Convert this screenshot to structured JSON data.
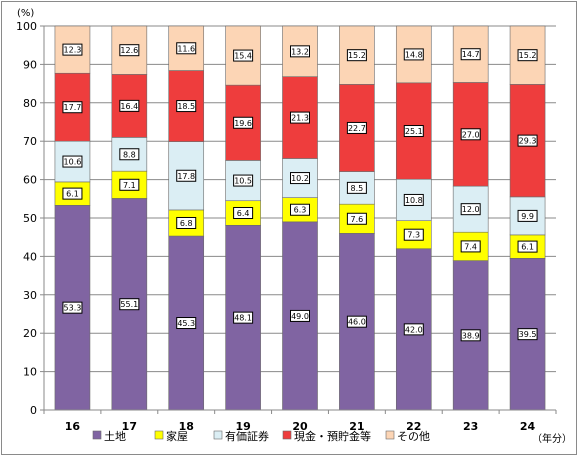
{
  "chart_data": {
    "type": "bar",
    "stacked": true,
    "y_unit_label": "(%)",
    "x_unit_label": "（年分）",
    "ylim": [
      0,
      100
    ],
    "yticks": [
      0,
      10,
      20,
      30,
      40,
      50,
      60,
      70,
      80,
      90,
      100
    ],
    "grid": true,
    "legend_position": "bottom",
    "categories": [
      "16",
      "17",
      "18",
      "19",
      "20",
      "21",
      "22",
      "23",
      "24"
    ],
    "series": [
      {
        "name": "土地",
        "color": "#8064a2",
        "values": [
          53.3,
          55.1,
          45.3,
          48.1,
          49.0,
          46.0,
          42.0,
          38.9,
          39.5
        ]
      },
      {
        "name": "家屋",
        "color": "#ffff00",
        "values": [
          6.1,
          7.1,
          6.8,
          6.4,
          6.3,
          7.6,
          7.3,
          7.4,
          6.1
        ]
      },
      {
        "name": "有価証券",
        "color": "#dbeef4",
        "values": [
          10.6,
          8.8,
          17.8,
          10.5,
          10.2,
          8.5,
          10.8,
          12.0,
          9.9
        ]
      },
      {
        "name": "現金・預貯金等",
        "color": "#ee3d3d",
        "values": [
          17.7,
          16.4,
          18.5,
          19.6,
          21.3,
          22.7,
          25.1,
          27.0,
          29.3
        ]
      },
      {
        "name": "その他",
        "color": "#fcd5b5",
        "values": [
          12.3,
          12.6,
          11.6,
          15.4,
          13.2,
          15.2,
          14.8,
          14.7,
          15.2
        ]
      }
    ]
  }
}
